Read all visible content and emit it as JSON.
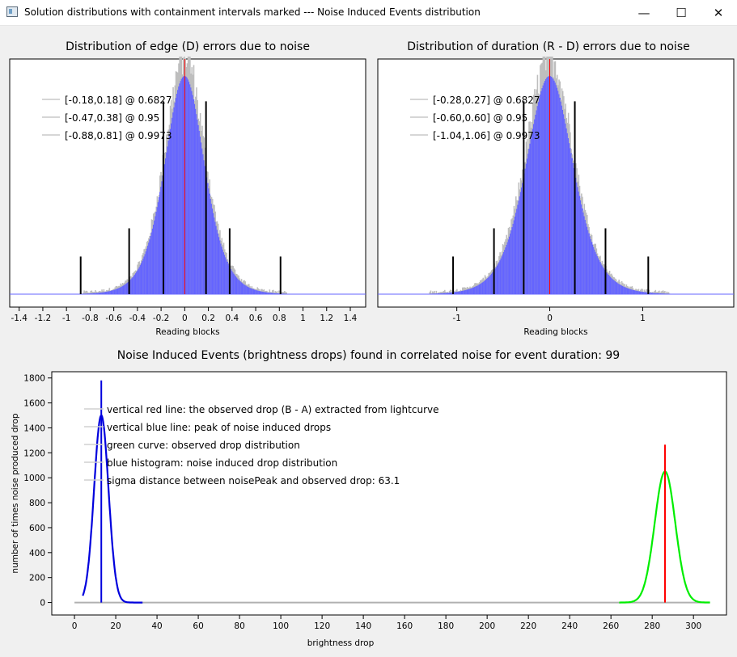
{
  "window": {
    "title": "Solution distributions with containment intervals marked --- Noise Induced Events distribution",
    "minimize_glyph": "—",
    "maximize_glyph": "☐",
    "close_glyph": "✕"
  },
  "chart_data": [
    {
      "id": "edge",
      "type": "bar",
      "title": "Distribution of edge (D) errors due to noise",
      "xlabel": "Reading blocks",
      "ylabel": "",
      "xlim": [
        -1.48,
        1.53
      ],
      "xticks": [
        -1.4,
        -1.2,
        -1,
        -0.8,
        -0.6,
        -0.4,
        -0.2,
        0,
        0.2,
        0.4,
        0.6,
        0.8,
        1,
        1.2,
        1.4
      ],
      "xtick_labels": [
        "-1.4",
        "-1.2",
        "-1",
        "-0.8",
        "-0.6",
        "-0.4",
        "-0.2",
        "0",
        "0.2",
        "0.4",
        "0.6",
        "0.8",
        "1",
        "1.2",
        "1.4"
      ],
      "legend": [
        "[-0.18,0.18] @ 0.6827",
        "[-0.47,0.38] @ 0.95",
        "[-0.88,0.81] @ 0.9973"
      ],
      "legend_position": "top-left",
      "intervals": [
        [
          -0.18,
          0.18
        ],
        [
          -0.47,
          0.38
        ],
        [
          -0.88,
          0.81
        ]
      ],
      "interval_heights": [
        0.82,
        0.28,
        0.16
      ],
      "marker_x": 0,
      "distribution_sigma": 0.18,
      "colors": {
        "histogram": "#6464ff",
        "noise": "#bebebe",
        "marker": "#ff0000",
        "interval": "#000000"
      }
    },
    {
      "id": "duration",
      "type": "bar",
      "title": "Distribution of duration (R - D) errors due to noise",
      "xlabel": "Reading blocks",
      "ylabel": "",
      "xlim": [
        -1.85,
        1.98
      ],
      "xticks": [
        -1,
        0,
        1
      ],
      "xtick_labels": [
        "-1",
        "0",
        "1"
      ],
      "legend": [
        "[-0.28,0.27] @ 0.6827",
        "[-0.60,0.60] @ 0.95",
        "[-1.04,1.06] @ 0.9973"
      ],
      "legend_position": "top-left",
      "intervals": [
        [
          -0.28,
          0.27
        ],
        [
          -0.6,
          0.6
        ],
        [
          -1.04,
          1.06
        ]
      ],
      "interval_heights": [
        0.82,
        0.28,
        0.16
      ],
      "marker_x": 0,
      "distribution_sigma": 0.27,
      "colors": {
        "histogram": "#6464ff",
        "noise": "#bebebe",
        "marker": "#ff0000",
        "interval": "#000000"
      }
    },
    {
      "id": "noise_events",
      "type": "line",
      "title": "Noise Induced Events (brightness drops) found in correlated noise for event duration: 99",
      "xlabel": "brightness drop",
      "ylabel": "number of times noise produced drop",
      "xlim": [
        -11,
        316
      ],
      "ylim": [
        -100,
        1850
      ],
      "xticks": [
        0,
        20,
        40,
        60,
        80,
        100,
        120,
        140,
        160,
        180,
        200,
        220,
        240,
        260,
        280,
        300
      ],
      "yticks": [
        0,
        200,
        400,
        600,
        800,
        1000,
        1200,
        1400,
        1600,
        1800
      ],
      "legend": [
        "vertical red line: the observed drop (B - A) extracted from lightcurve",
        "vertical blue line: peak of noise induced drops",
        "green curve: observed drop distribution",
        "blue histogram: noise induced drop distribution",
        "sigma distance between noisePeak and observed drop: 63.1"
      ],
      "legend_position": "top-left",
      "series": [
        {
          "name": "observed drop distribution",
          "color": "#00ee00",
          "peak_x": 286.2,
          "peak_y": 1050,
          "sigma": 5,
          "x_range": [
            264,
            308
          ]
        },
        {
          "name": "noise induced drop distribution",
          "color": "#0000dd",
          "peak_x": 13,
          "peak_y": 1500,
          "sigma": 3.5,
          "x_range": [
            4,
            33
          ]
        }
      ],
      "vlines": [
        {
          "name": "observed drop",
          "x": 286.2,
          "y": 1265,
          "color": "#ff0000"
        },
        {
          "name": "noise peak",
          "x": 13,
          "y": 1780,
          "color": "#0000dd"
        }
      ],
      "baseline": {
        "x_range": [
          0,
          308
        ],
        "color": "#b0b0b0"
      }
    }
  ]
}
